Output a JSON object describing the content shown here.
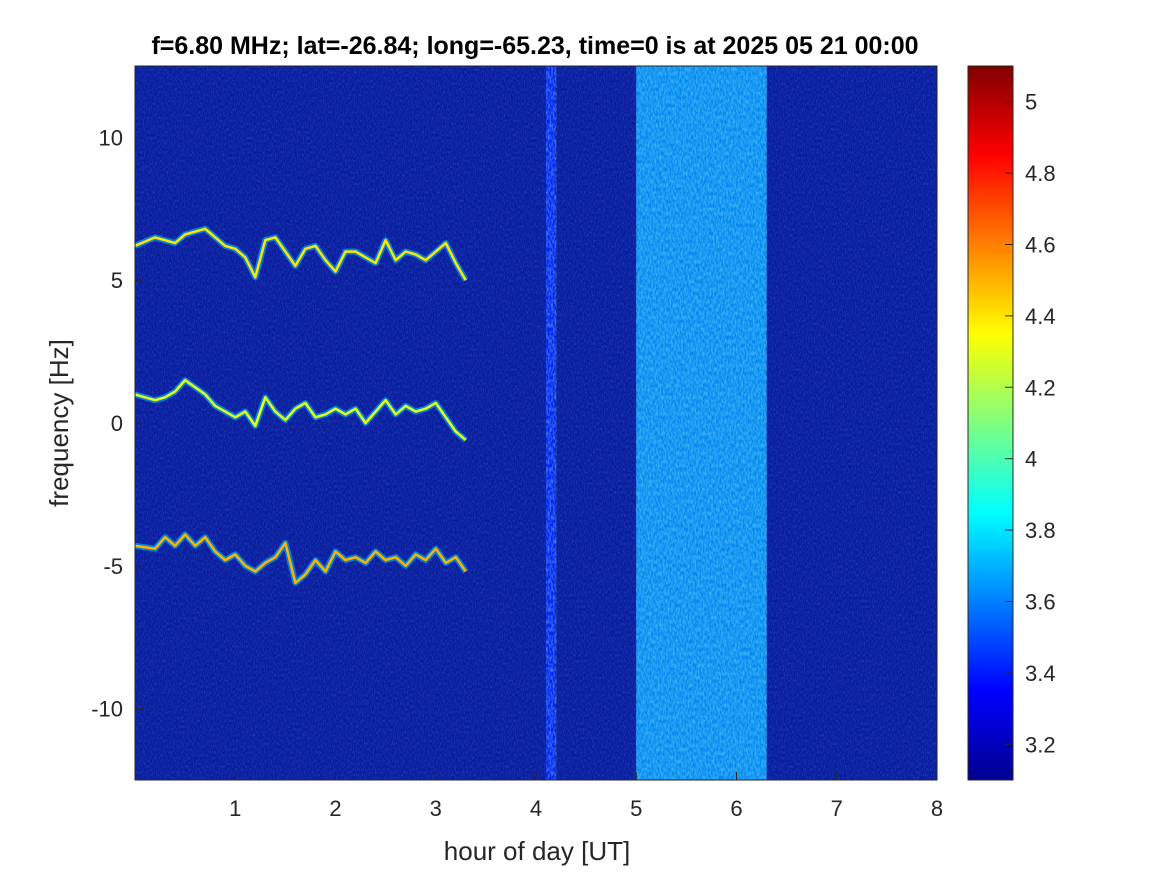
{
  "chart_data": {
    "type": "heatmap",
    "title": "f=6.80 MHz;  lat=-26.84; long=-65.23, time=0 is at 2025 05 21 00:00",
    "xlabel": "hour of day [UT]",
    "ylabel": "frequency [Hz]",
    "xlim": [
      0,
      8
    ],
    "ylim": [
      -12.5,
      12.5
    ],
    "x_ticks": [
      "1",
      "2",
      "3",
      "4",
      "5",
      "6",
      "7",
      "8"
    ],
    "x_tick_values": [
      1,
      2,
      3,
      4,
      5,
      6,
      7,
      8
    ],
    "y_ticks": [
      "-10",
      "-5",
      "0",
      "5",
      "10"
    ],
    "y_tick_values": [
      -10,
      -5,
      0,
      5,
      10
    ],
    "colormap": "jet",
    "colorbar": {
      "range": [
        3.1,
        5.1
      ],
      "ticks": [
        "3.2",
        "3.4",
        "3.6",
        "3.8",
        "4",
        "4.2",
        "4.4",
        "4.6",
        "4.8",
        "5"
      ],
      "tick_values": [
        3.2,
        3.4,
        3.6,
        3.8,
        4.0,
        4.2,
        4.4,
        4.6,
        4.8,
        5.0
      ]
    },
    "background_level": 3.15,
    "series": [
      {
        "x": [
          0.0,
          0.2,
          0.4,
          0.5,
          0.7,
          0.9,
          1.0,
          1.1,
          1.2,
          1.3,
          1.4,
          1.5,
          1.6,
          1.7,
          1.8,
          1.9,
          2.0,
          2.1,
          2.2,
          2.3,
          2.4,
          2.5,
          2.6,
          2.7,
          2.8,
          2.9,
          3.0,
          3.1,
          3.2,
          3.3
        ],
        "values": [
          6.2,
          6.5,
          6.3,
          6.6,
          6.8,
          6.2,
          6.1,
          5.8,
          5.1,
          6.4,
          6.5,
          6.0,
          5.5,
          6.1,
          6.2,
          5.7,
          5.3,
          6.0,
          6.0,
          5.8,
          5.6,
          6.4,
          5.7,
          6.0,
          5.9,
          5.7,
          6.0,
          6.3,
          5.6,
          5.0
        ],
        "intensity": 4.4
      },
      {
        "x": [
          0.0,
          0.2,
          0.3,
          0.4,
          0.5,
          0.7,
          0.8,
          0.9,
          1.0,
          1.1,
          1.2,
          1.3,
          1.4,
          1.5,
          1.6,
          1.7,
          1.8,
          1.9,
          2.0,
          2.1,
          2.2,
          2.3,
          2.4,
          2.5,
          2.6,
          2.7,
          2.8,
          2.9,
          3.0,
          3.1,
          3.2,
          3.3
        ],
        "values": [
          1.0,
          0.8,
          0.9,
          1.1,
          1.5,
          1.0,
          0.6,
          0.4,
          0.2,
          0.4,
          -0.1,
          0.9,
          0.4,
          0.1,
          0.5,
          0.7,
          0.2,
          0.3,
          0.5,
          0.3,
          0.5,
          0.0,
          0.4,
          0.8,
          0.3,
          0.6,
          0.4,
          0.5,
          0.7,
          0.2,
          -0.3,
          -0.6
        ],
        "intensity": 4.3
      },
      {
        "x": [
          0.0,
          0.2,
          0.3,
          0.4,
          0.5,
          0.6,
          0.7,
          0.8,
          0.9,
          1.0,
          1.1,
          1.2,
          1.3,
          1.4,
          1.5,
          1.6,
          1.7,
          1.8,
          1.9,
          2.0,
          2.1,
          2.2,
          2.3,
          2.4,
          2.5,
          2.6,
          2.7,
          2.8,
          2.9,
          3.0,
          3.1,
          3.2,
          3.3
        ],
        "values": [
          -4.3,
          -4.4,
          -4.0,
          -4.3,
          -3.9,
          -4.3,
          -4.0,
          -4.5,
          -4.8,
          -4.6,
          -5.0,
          -5.2,
          -4.9,
          -4.7,
          -4.2,
          -5.6,
          -5.3,
          -4.8,
          -5.2,
          -4.5,
          -4.8,
          -4.7,
          -4.9,
          -4.5,
          -4.8,
          -4.7,
          -5.0,
          -4.6,
          -4.8,
          -4.4,
          -4.9,
          -4.7,
          -5.2
        ],
        "intensity": 4.5
      }
    ],
    "noise_bands": [
      {
        "x": [
          5.0,
          6.3
        ],
        "level": 3.65
      },
      {
        "x": [
          4.1,
          4.2
        ],
        "level": 3.4
      }
    ]
  }
}
